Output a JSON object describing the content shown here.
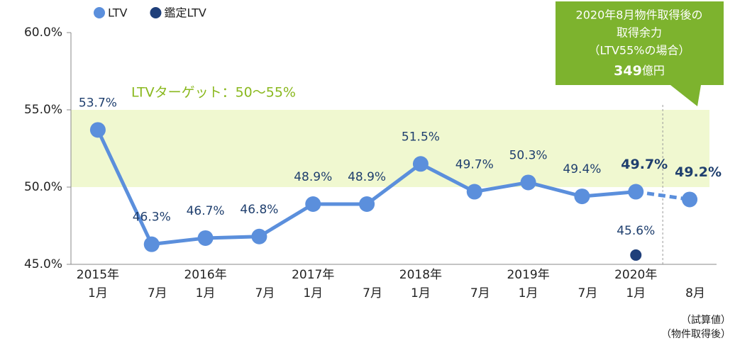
{
  "chart_data": {
    "type": "line",
    "categories": [
      [
        "2015年",
        "1月"
      ],
      [
        "7月"
      ],
      [
        "2016年",
        "1月"
      ],
      [
        "7月"
      ],
      [
        "2017年",
        "1月"
      ],
      [
        "7月"
      ],
      [
        "2018年",
        "1月"
      ],
      [
        "7月"
      ],
      [
        "2019年",
        "1月"
      ],
      [
        "7月"
      ],
      [
        "2020年",
        "1月"
      ],
      [
        "8月"
      ]
    ],
    "series": [
      {
        "name": "LTV",
        "color": "#5b8fdc",
        "values": [
          53.7,
          46.3,
          46.7,
          46.8,
          48.9,
          48.9,
          51.5,
          49.7,
          50.3,
          49.4,
          49.7,
          49.2
        ],
        "value_labels": [
          "53.7%",
          "46.3%",
          "46.7%",
          "46.8%",
          "48.9%",
          "48.9%",
          "51.5%",
          "49.7%",
          "50.3%",
          "49.4%",
          "49.7%",
          "49.2%"
        ],
        "bold_value_labels": [
          false,
          false,
          false,
          false,
          false,
          false,
          false,
          false,
          false,
          false,
          true,
          true
        ],
        "last_segment_style": "dashed"
      },
      {
        "name": "鑑定LTV",
        "color": "#1f3f7a",
        "values": [
          null,
          null,
          null,
          null,
          null,
          null,
          null,
          null,
          null,
          null,
          45.6,
          null
        ],
        "value_labels": [
          null,
          null,
          null,
          null,
          null,
          null,
          null,
          null,
          null,
          null,
          "45.6%",
          null
        ]
      }
    ],
    "ylim": [
      45,
      60
    ],
    "yticks": [
      {
        "value": 45,
        "label": "45.0%"
      },
      {
        "value": 50,
        "label": "50.0%"
      },
      {
        "value": 55,
        "label": "55.0%"
      },
      {
        "value": 60,
        "label": "60.0%"
      }
    ],
    "target_band": {
      "range": [
        50,
        55
      ],
      "label": "LTVターゲット：50〜55%",
      "color": "#f0f8d0"
    },
    "callout": {
      "lines": [
        "2020年8月物件取得後の",
        "取得余力",
        "（LTV55%の場合）"
      ],
      "amount": "349",
      "unit": "億円",
      "color": "#7db32e"
    },
    "notes": [
      "（試算値）",
      "（物件取得後）"
    ],
    "legend": "top-left"
  }
}
